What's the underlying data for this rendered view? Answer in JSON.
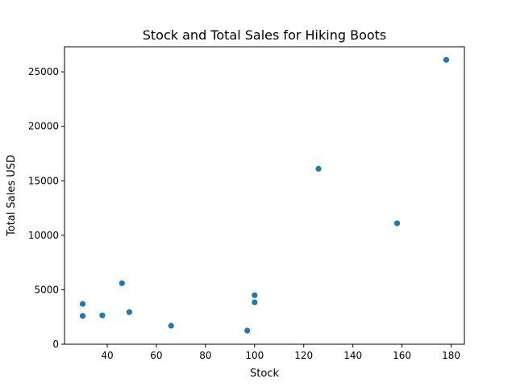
{
  "chart_data": {
    "type": "scatter",
    "title": "Stock and Total Sales for Hiking Boots",
    "xlabel": "Stock",
    "ylabel": "Total Sales USD",
    "xlim": [
      22.6,
      185.4
    ],
    "ylim": [
      0,
      27300
    ],
    "xticks": [
      40,
      60,
      80,
      100,
      120,
      140,
      160,
      180
    ],
    "yticks": [
      0,
      5000,
      10000,
      15000,
      20000,
      25000
    ],
    "grid": false,
    "marker_color": "#1f77b4",
    "x": [
      30,
      30,
      38,
      46,
      49,
      66,
      97,
      100,
      100,
      126,
      158,
      178
    ],
    "y": [
      3700,
      2600,
      2650,
      5600,
      2950,
      1700,
      1250,
      3850,
      4500,
      16100,
      11100,
      26100
    ]
  }
}
